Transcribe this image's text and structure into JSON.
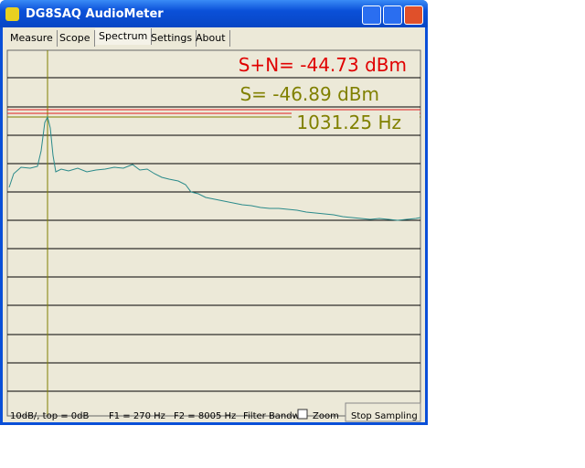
{
  "window": {
    "title": "DG8SAQ AudioMeter"
  },
  "tabs": [
    "Measure",
    "Scope",
    "Spectrum",
    "Settings",
    "About"
  ],
  "readouts": {
    "signal_noise": "S+N= -44.73 dBm",
    "signal": "S= -46.89 dBm",
    "frequency": "1031.25 Hz"
  },
  "status": {
    "scale": "10dB/, top = 0dB",
    "f1": "F1 = 270 Hz",
    "f2": "F2 = 8005 Hz",
    "filter": "Filter Bandwi",
    "zoom": "Zoom",
    "button": "Stop Sampling"
  }
}
